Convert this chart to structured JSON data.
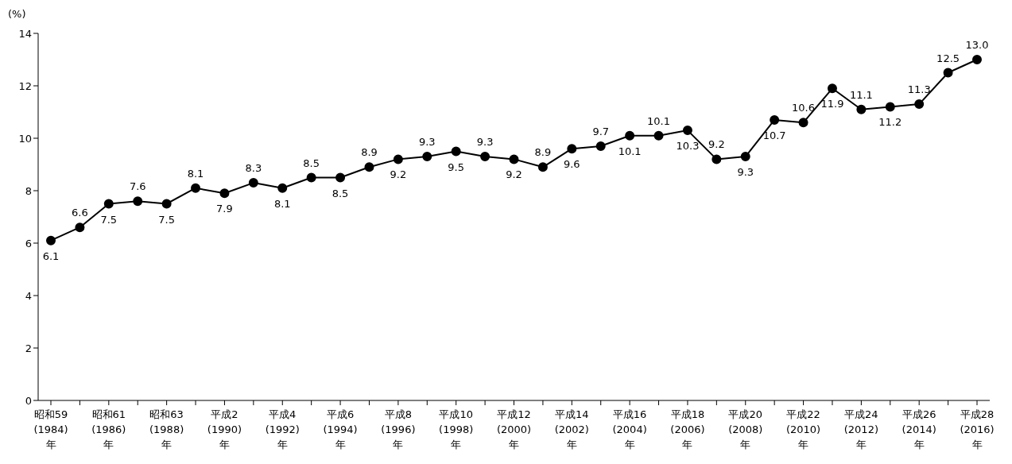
{
  "chart_data": {
    "type": "line",
    "ylabel": "(%)",
    "categories": [
      "昭和59\n(1984)\n年",
      null,
      "昭和61\n(1986)\n年",
      null,
      "昭和63\n(1988)\n年",
      null,
      "平成2\n(1990)\n年",
      null,
      "平成4\n(1992)\n年",
      null,
      "平成6\n(1994)\n年",
      null,
      "平成8\n(1996)\n年",
      null,
      "平成10\n(1998)\n年",
      null,
      "平成12\n(2000)\n年",
      null,
      "平成14\n(2002)\n年",
      null,
      "平成16\n(2004)\n年",
      null,
      "平成18\n(2006)\n年",
      null,
      "平成20\n(2008)\n年",
      null,
      "平成22\n(2010)\n年",
      null,
      "平成24\n(2012)\n年",
      null,
      "平成26\n(2014)\n年",
      null,
      "平成28\n(2016)\n年"
    ],
    "series": [
      {
        "color": "#000000",
        "values": [
          6.1,
          6.6,
          7.5,
          7.6,
          7.5,
          8.1,
          7.9,
          8.3,
          8.1,
          8.5,
          8.5,
          8.9,
          9.2,
          9.3,
          9.5,
          9.3,
          9.2,
          8.9,
          9.6,
          9.7,
          10.1,
          10.1,
          10.3,
          9.2,
          9.3,
          10.7,
          10.6,
          11.9,
          11.1,
          11.2,
          11.3,
          12.5,
          13.0
        ],
        "value_labels": [
          "6.1",
          "6.6",
          "7.5",
          "7.6",
          "7.5",
          "8.1",
          "7.9",
          "8.3",
          "8.1",
          "8.5",
          "8.5",
          "8.9",
          "9.2",
          "9.3",
          "9.5",
          "9.3",
          "9.2",
          "8.9",
          "9.6",
          "9.7",
          "10.1",
          "10.1",
          "10.3",
          "9.2",
          "9.3",
          "10.7",
          "10.6",
          "11.9",
          "11.1",
          "11.2",
          "11.3",
          "12.5",
          "13.0"
        ]
      }
    ],
    "ylim": [
      0,
      14
    ],
    "yticks": [
      0,
      2,
      4,
      6,
      8,
      10,
      12,
      14
    ],
    "marker": "circle",
    "line_style": "solid"
  }
}
